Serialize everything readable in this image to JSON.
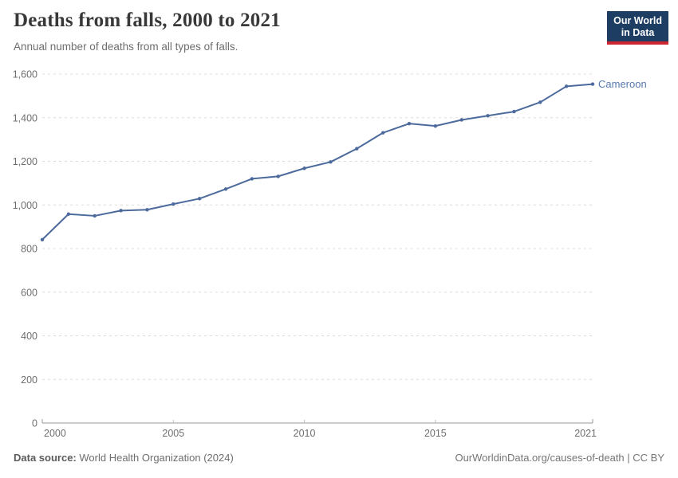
{
  "header": {
    "title": "Deaths from falls, 2000 to 2021",
    "subtitle": "Annual number of deaths from all types of falls.",
    "logo": {
      "line1": "Our World",
      "line2": "in Data"
    }
  },
  "chart_data": {
    "type": "line",
    "title": "Deaths from falls, 2000 to 2021",
    "xlabel": "",
    "ylabel": "",
    "xlim": [
      2000,
      2021
    ],
    "ylim": [
      0,
      1600
    ],
    "xticks": [
      2000,
      2005,
      2010,
      2015,
      2021
    ],
    "yticks": [
      0,
      200,
      400,
      600,
      800,
      1000,
      1200,
      1400,
      1600
    ],
    "grid": true,
    "legend_position": "end-of-line",
    "series": [
      {
        "name": "Cameroon",
        "x": [
          2000,
          2001,
          2002,
          2003,
          2004,
          2005,
          2006,
          2007,
          2008,
          2009,
          2010,
          2011,
          2012,
          2013,
          2014,
          2015,
          2016,
          2017,
          2018,
          2019,
          2020,
          2021
        ],
        "values": [
          841,
          958,
          950,
          974,
          978,
          1004,
          1029,
          1073,
          1120,
          1131,
          1168,
          1197,
          1258,
          1331,
          1373,
          1362,
          1390,
          1409,
          1428,
          1471,
          1544,
          1554
        ]
      }
    ]
  },
  "colors": {
    "line": "#4c6a9c",
    "entity_label": "#5778ab",
    "gridline": "#dcdcdc",
    "axis": "#9a9a9a",
    "tick_text": "#6e6e6e",
    "logo_bg": "#1d3d63",
    "logo_red": "#cc2631"
  },
  "footer": {
    "source_label": "Data source:",
    "source_value": "World Health Organization (2024)",
    "license": "OurWorldinData.org/causes-of-death | CC BY"
  }
}
